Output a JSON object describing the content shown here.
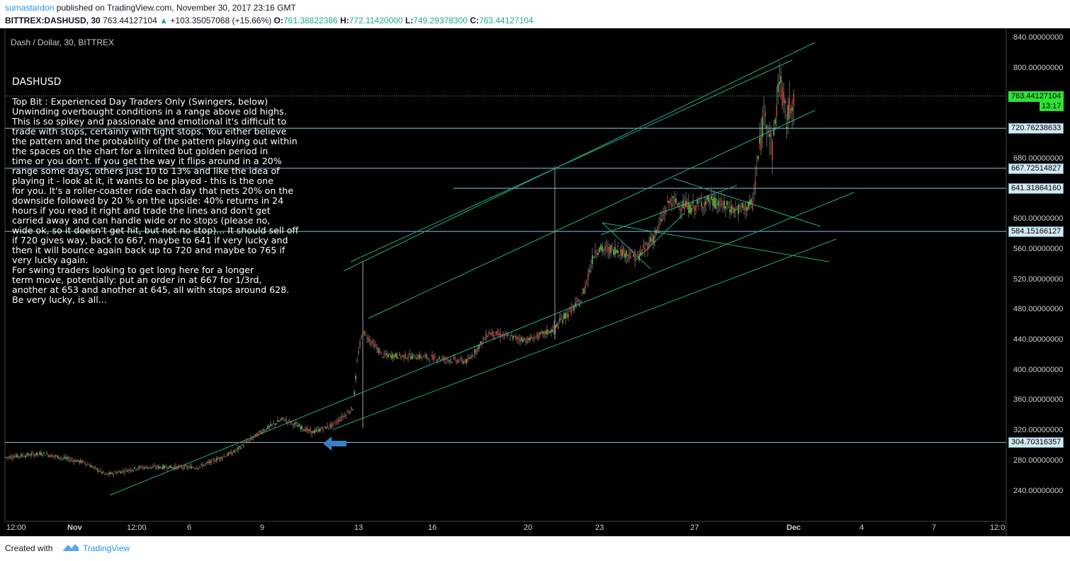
{
  "header": {
    "author": "sumastardon",
    "published_text": " published on TradingView.com, November 30, 2017 23:16 GMT",
    "symbol": "BITTREX:DASHUSD, 30",
    "last_price": "763.44127104",
    "change_arrow": "▲",
    "change": "+103.35057068 (+15.66%)",
    "ohlc": [
      {
        "k": "O:",
        "v": "761.38822386"
      },
      {
        "k": "H:",
        "v": "772.11420000"
      },
      {
        "k": "L:",
        "v": "749.29378300"
      },
      {
        "k": "C:",
        "v": "763.44127104"
      }
    ]
  },
  "chart": {
    "title": "Dash / Dollar, 30, BITTREX",
    "symbol_label": "DASHUSD",
    "annotation": "Top Bit : Experienced Day Traders Only (Swingers, below)\nUnwinding overbought conditions in a range above old highs.\nThis is so spikey and passionate and emotional it's difficult to\ntrade with stops, certainly with tight stops. You either believe\nthe pattern and the probability of the pattern playing out within\nthe spaces on the chart for a limited but golden period in\ntime or you don't. If you get the way it flips around in a 20%\nrange some days, others just 10 to 13% and like the idea of\nplaying it - look at it, it wants to be played - this is the one\nfor you. It's a roller-coaster ride each day that nets 20% on the\ndownside followed by 20 % on the upside: 40% returns in 24\nhours if you read it right and trade the lines and don't get\ncarried away and can handle wide or no stops (please no,\nwide ok, so it doesn't get hit, but not no stop)... It should sell off\nif 720 gives way, back to 667, maybe to 641 if very lucky and\nthen it will bounce again back up to 720 and maybe to 765 if\nvery lucky again.\nFor swing traders looking to get long here for a longer\nterm move, potentially: put an order in at 667 for 1/3rd,\nanother at 653 and another at 645, all with stops around 628.\nBe very lucky, is all...",
    "price_axis": [
      "840.00000000",
      "800.00000000",
      "760.00000000",
      "720.00000000",
      "680.00000000",
      "640.00000000",
      "600.00000000",
      "560.00000000",
      "520.00000000",
      "480.00000000",
      "440.00000000",
      "400.00000000",
      "360.00000000",
      "320.00000000",
      "280.00000000",
      "240.00000000"
    ],
    "time_axis": [
      "12:00",
      "Nov",
      "12:00",
      "6",
      "9",
      "13",
      "16",
      "20",
      "23",
      "27",
      "Dec",
      "4",
      "7",
      "12:0"
    ],
    "price_tags": [
      {
        "value": "720.76238633",
        "level": 720.76238633
      },
      {
        "value": "667.72514827",
        "level": 667.72514827
      },
      {
        "value": "641.31864160",
        "level": 641.3186416
      },
      {
        "value": "584.15166127",
        "level": 584.15166127
      },
      {
        "value": "304.70316357",
        "level": 304.70316357
      }
    ],
    "last_tag": {
      "value": "763.44127104",
      "level": 763.44127104,
      "countdown": "13:17"
    },
    "colors": {
      "background": "#000000",
      "candle_up": "#7bd147",
      "candle_down": "#e8423e",
      "trendline": "#1fae8a",
      "hline": "#8fc3d6",
      "arrow": "#3a7fc4",
      "last_price": "#2ee336"
    }
  },
  "footer": {
    "created_with": "Created with",
    "brand": "TradingView"
  }
}
